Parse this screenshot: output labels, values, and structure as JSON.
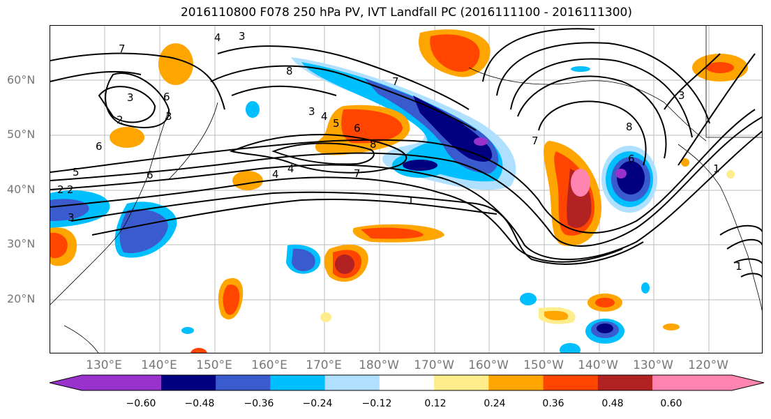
{
  "title": "2016110800 F078 250 hPa PV, IVT Landfall PC (2016111100 - 2016111300)",
  "lat_labels": [
    {
      "label": "60°N",
      "lat": 60
    },
    {
      "label": "50°N",
      "lat": 50
    },
    {
      "label": "40°N",
      "lat": 40
    },
    {
      "label": "30°N",
      "lat": 30
    },
    {
      "label": "20°N",
      "lat": 20
    }
  ],
  "lon_labels": [
    {
      "label": "130°E",
      "lon": 130
    },
    {
      "label": "140°E",
      "lon": 140
    },
    {
      "label": "150°E",
      "lon": 150
    },
    {
      "label": "160°E",
      "lon": 160
    },
    {
      "label": "170°E",
      "lon": 170
    },
    {
      "label": "180°W",
      "lon": 180
    },
    {
      "label": "170°W",
      "lon": 190
    },
    {
      "label": "160°W",
      "lon": 200
    },
    {
      "label": "150°W",
      "lon": 210
    },
    {
      "label": "140°W",
      "lon": 220
    },
    {
      "label": "130°W",
      "lon": 230
    },
    {
      "label": "120°W",
      "lon": 240
    }
  ],
  "colorbar": {
    "colors": [
      "#9932CC",
      "#000080",
      "#3A5BCD",
      "#00BFFF",
      "#B0E0FF",
      "#FFFFFF",
      "#FFEC8B",
      "#FFA500",
      "#FF4500",
      "#B22222",
      "#FF85B0"
    ],
    "ticks": [
      "−0.60",
      "−0.48",
      "−0.36",
      "−0.24",
      "−0.12",
      "0.12",
      "0.24",
      "0.36",
      "0.48",
      "0.60"
    ]
  },
  "contour_labels": [
    "3",
    "4",
    "7",
    "2",
    "3",
    "6",
    "3",
    "6",
    "5",
    "2",
    "2",
    "3",
    "6",
    "4",
    "8",
    "3",
    "4",
    "5",
    "6",
    "8",
    "7",
    "4",
    "7",
    "1",
    "7",
    "8",
    "6",
    "3",
    "1",
    "1"
  ]
}
